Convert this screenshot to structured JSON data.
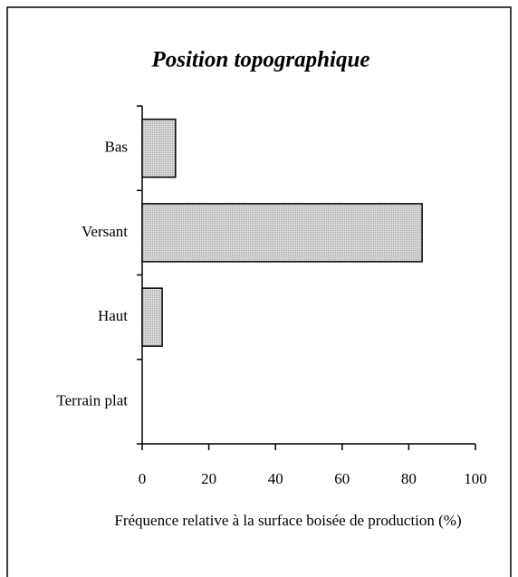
{
  "chart_data": {
    "type": "hbar",
    "title": "Position topographique",
    "categories": [
      "Bas",
      "Versant",
      "Haut",
      "Terrain plat"
    ],
    "values": [
      10,
      84,
      6,
      0
    ],
    "color": "#d8d8d8",
    "xlabel": "Fréquence relative à la surface boisée de production (%)",
    "xlim": [
      0,
      100
    ],
    "xticks": [
      0,
      20,
      40,
      60,
      80,
      100
    ]
  }
}
